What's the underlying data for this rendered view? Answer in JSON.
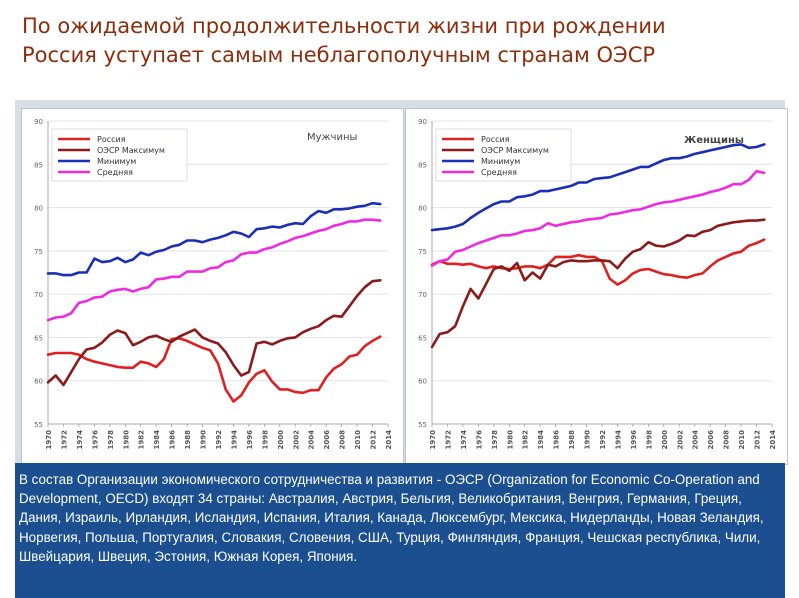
{
  "slide": {
    "title_line1": "По ожидаемой продолжительности жизни при рождении",
    "title_line2": "Россия уступает самым  неблагополучным странам ОЭСР",
    "note": "В состав Организации экономического сотрудничества и развития - ОЭСР (Organization for Economic Co-Operation and Development, OECD) входят 34 страны: Австралия, Австрия, Бельгия, Великобритания, Венгрия, Германия, Греция, Дания, Израиль, Ирландия, Исландия, Испания, Италия, Канада, Люксембург, Мексика, Нидерланды, Новая Зеландия, Норвегия, Польша, Португалия, Словакия, Словения, США, Турция, Финляндия, Франция, Чешская республика, Чили, Швейцария, Швеция, Эстония, Южная Корея, Япония."
  },
  "chart_data": [
    {
      "type": "line",
      "title": "Мужчины",
      "xlabel": "",
      "ylabel": "",
      "ylim": [
        55,
        90
      ],
      "yticks": [
        55,
        60,
        65,
        70,
        75,
        80,
        85,
        90
      ],
      "xlim": [
        1970,
        2014
      ],
      "xticks": [
        "1970",
        "1972",
        "1974",
        "1976",
        "1978",
        "1980",
        "1982",
        "1984",
        "1986",
        "1988",
        "1990",
        "1992",
        "1994",
        "1996",
        "1998",
        "2000",
        "2002",
        "2004",
        "2006",
        "2008",
        "2010",
        "2012",
        "2014"
      ],
      "grid": true,
      "legend_position": "top-left",
      "series": [
        {
          "name": "Россия",
          "color": "#e02020",
          "x": [
            1970,
            1971,
            1972,
            1973,
            1974,
            1975,
            1976,
            1977,
            1978,
            1979,
            1980,
            1981,
            1982,
            1983,
            1984,
            1985,
            1986,
            1987,
            1988,
            1989,
            1990,
            1991,
            1992,
            1993,
            1994,
            1995,
            1996,
            1997,
            1998,
            1999,
            2000,
            2001,
            2002,
            2003,
            2004,
            2005,
            2006,
            2007,
            2008,
            2009,
            2010,
            2011,
            2012,
            2013
          ],
          "y": [
            63.0,
            63.2,
            63.2,
            63.2,
            63.0,
            62.5,
            62.2,
            62.0,
            61.8,
            61.6,
            61.5,
            61.5,
            62.2,
            62.0,
            61.6,
            62.5,
            64.8,
            64.9,
            64.6,
            64.2,
            63.8,
            63.5,
            62.0,
            59.0,
            57.6,
            58.3,
            59.8,
            60.8,
            61.2,
            59.9,
            59.0,
            59.0,
            58.7,
            58.6,
            58.9,
            58.9,
            60.4,
            61.4,
            61.9,
            62.8,
            63.0,
            64.0,
            64.6,
            65.1
          ]
        },
        {
          "name": "ОЭСР Максимум",
          "color": "#8b1a1a",
          "x": [
            1970,
            1971,
            1972,
            1973,
            1974,
            1975,
            1976,
            1977,
            1978,
            1979,
            1980,
            1981,
            1982,
            1983,
            1984,
            1985,
            1986,
            1987,
            1988,
            1989,
            1990,
            1991,
            1992,
            1993,
            1994,
            1995,
            1996,
            1997,
            1998,
            1999,
            2000,
            2001,
            2002,
            2003,
            2004,
            2005,
            2006,
            2007,
            2008,
            2009,
            2010,
            2011,
            2012,
            2013
          ],
          "y": [
            59.8,
            60.6,
            59.5,
            61.0,
            62.5,
            63.6,
            63.8,
            64.4,
            65.3,
            65.8,
            65.5,
            64.1,
            64.5,
            65.0,
            65.2,
            64.8,
            64.5,
            65.1,
            65.5,
            65.9,
            65.0,
            64.6,
            64.3,
            63.3,
            61.8,
            60.6,
            61.0,
            64.3,
            64.5,
            64.2,
            64.6,
            64.9,
            65.0,
            65.6,
            66.0,
            66.3,
            67.0,
            67.5,
            67.4,
            68.6,
            69.8,
            70.8,
            71.5,
            71.6
          ]
        },
        {
          "name": "Минимум",
          "color": "#1a2fb5",
          "x": [
            1970,
            1971,
            1972,
            1973,
            1974,
            1975,
            1976,
            1977,
            1978,
            1979,
            1980,
            1981,
            1982,
            1983,
            1984,
            1985,
            1986,
            1987,
            1988,
            1989,
            1990,
            1991,
            1992,
            1993,
            1994,
            1995,
            1996,
            1997,
            1998,
            1999,
            2000,
            2001,
            2002,
            2003,
            2004,
            2005,
            2006,
            2007,
            2008,
            2009,
            2010,
            2011,
            2012,
            2013
          ],
          "y": [
            72.4,
            72.4,
            72.2,
            72.2,
            72.5,
            72.5,
            74.1,
            73.7,
            73.8,
            74.2,
            73.7,
            74.0,
            74.8,
            74.5,
            74.9,
            75.1,
            75.5,
            75.7,
            76.2,
            76.2,
            76.0,
            76.3,
            76.5,
            76.8,
            77.2,
            77.0,
            76.6,
            77.5,
            77.6,
            77.8,
            77.7,
            78.0,
            78.2,
            78.1,
            79.0,
            79.6,
            79.4,
            79.8,
            79.8,
            79.9,
            80.1,
            80.2,
            80.5,
            80.4
          ]
        },
        {
          "name": "Средняя",
          "color": "#ee2be0",
          "x": [
            1970,
            1971,
            1972,
            1973,
            1974,
            1975,
            1976,
            1977,
            1978,
            1979,
            1980,
            1981,
            1982,
            1983,
            1984,
            1985,
            1986,
            1987,
            1988,
            1989,
            1990,
            1991,
            1992,
            1993,
            1994,
            1995,
            1996,
            1997,
            1998,
            1999,
            2000,
            2001,
            2002,
            2003,
            2004,
            2005,
            2006,
            2007,
            2008,
            2009,
            2010,
            2011,
            2012,
            2013
          ],
          "y": [
            67.0,
            67.3,
            67.4,
            67.8,
            69.0,
            69.2,
            69.6,
            69.7,
            70.3,
            70.5,
            70.6,
            70.3,
            70.6,
            70.8,
            71.7,
            71.8,
            72.0,
            72.0,
            72.6,
            72.6,
            72.6,
            73.0,
            73.1,
            73.7,
            73.9,
            74.6,
            74.8,
            74.8,
            75.2,
            75.4,
            75.8,
            76.1,
            76.5,
            76.7,
            77.0,
            77.3,
            77.5,
            77.9,
            78.1,
            78.4,
            78.4,
            78.6,
            78.6,
            78.5
          ]
        }
      ]
    },
    {
      "type": "line",
      "title": "Женщины",
      "xlabel": "",
      "ylabel": "",
      "ylim": [
        55,
        90
      ],
      "yticks": [
        55,
        60,
        65,
        70,
        75,
        80,
        85,
        90
      ],
      "xlim": [
        1970,
        2014
      ],
      "xticks": [
        "1970",
        "1972",
        "1974",
        "1976",
        "1978",
        "1980",
        "1982",
        "1984",
        "1986",
        "1988",
        "1990",
        "1992",
        "1994",
        "1996",
        "1998",
        "2000",
        "2002",
        "2004",
        "2006",
        "2008",
        "2010",
        "2012",
        "2014"
      ],
      "grid": true,
      "legend_position": "top-left",
      "series": [
        {
          "name": "Россия",
          "color": "#e02020",
          "x": [
            1970,
            1971,
            1972,
            1973,
            1974,
            1975,
            1976,
            1977,
            1978,
            1979,
            1980,
            1981,
            1982,
            1983,
            1984,
            1985,
            1986,
            1987,
            1988,
            1989,
            1990,
            1991,
            1992,
            1993,
            1994,
            1995,
            1996,
            1997,
            1998,
            1999,
            2000,
            2001,
            2002,
            2003,
            2004,
            2005,
            2006,
            2007,
            2008,
            2009,
            2010,
            2011,
            2012,
            2013
          ],
          "y": [
            73.4,
            73.8,
            73.5,
            73.5,
            73.4,
            73.5,
            73.2,
            73.0,
            73.2,
            73.0,
            72.9,
            73.0,
            73.2,
            73.2,
            73.0,
            73.4,
            74.3,
            74.3,
            74.3,
            74.5,
            74.3,
            74.3,
            73.8,
            71.8,
            71.1,
            71.6,
            72.4,
            72.8,
            72.9,
            72.6,
            72.3,
            72.2,
            72.0,
            71.9,
            72.2,
            72.4,
            73.2,
            73.9,
            74.3,
            74.7,
            74.9,
            75.6,
            75.9,
            76.3
          ]
        },
        {
          "name": "ОЭСР Максимум",
          "color": "#8b1a1a",
          "x": [
            1970,
            1971,
            1972,
            1973,
            1974,
            1975,
            1976,
            1977,
            1978,
            1979,
            1980,
            1981,
            1982,
            1983,
            1984,
            1985,
            1986,
            1987,
            1988,
            1989,
            1990,
            1991,
            1992,
            1993,
            1994,
            1995,
            1996,
            1997,
            1998,
            1999,
            2000,
            2001,
            2002,
            2003,
            2004,
            2005,
            2006,
            2007,
            2008,
            2009,
            2010,
            2011,
            2012,
            2013
          ],
          "y": [
            63.9,
            65.4,
            65.6,
            66.3,
            68.6,
            70.6,
            69.5,
            71.2,
            72.9,
            73.2,
            72.7,
            73.6,
            71.6,
            72.5,
            71.8,
            73.4,
            73.2,
            73.7,
            73.9,
            73.8,
            73.8,
            73.9,
            73.9,
            73.8,
            73.0,
            74.1,
            74.9,
            75.2,
            76.0,
            75.6,
            75.5,
            75.8,
            76.2,
            76.8,
            76.7,
            77.2,
            77.4,
            77.9,
            78.1,
            78.3,
            78.4,
            78.5,
            78.5,
            78.6
          ]
        },
        {
          "name": "Минимум",
          "color": "#1a2fb5",
          "x": [
            1970,
            1971,
            1972,
            1973,
            1974,
            1975,
            1976,
            1977,
            1978,
            1979,
            1980,
            1981,
            1982,
            1983,
            1984,
            1985,
            1986,
            1987,
            1988,
            1989,
            1990,
            1991,
            1992,
            1993,
            1994,
            1995,
            1996,
            1997,
            1998,
            1999,
            2000,
            2001,
            2002,
            2003,
            2004,
            2005,
            2006,
            2007,
            2008,
            2009,
            2010,
            2011,
            2012,
            2013
          ],
          "y": [
            77.4,
            77.5,
            77.6,
            77.8,
            78.1,
            78.8,
            79.4,
            79.9,
            80.4,
            80.7,
            80.7,
            81.2,
            81.3,
            81.5,
            81.9,
            81.9,
            82.1,
            82.3,
            82.5,
            82.9,
            82.9,
            83.3,
            83.4,
            83.5,
            83.8,
            84.1,
            84.4,
            84.7,
            84.7,
            85.1,
            85.5,
            85.7,
            85.7,
            85.9,
            86.2,
            86.4,
            86.6,
            86.8,
            87.0,
            87.2,
            87.3,
            86.9,
            87.0,
            87.3
          ]
        },
        {
          "name": "Средняя",
          "color": "#ee2be0",
          "x": [
            1970,
            1971,
            1972,
            1973,
            1974,
            1975,
            1976,
            1977,
            1978,
            1979,
            1980,
            1981,
            1982,
            1983,
            1984,
            1985,
            1986,
            1987,
            1988,
            1989,
            1990,
            1991,
            1992,
            1993,
            1994,
            1995,
            1996,
            1997,
            1998,
            1999,
            2000,
            2001,
            2002,
            2003,
            2004,
            2005,
            2006,
            2007,
            2008,
            2009,
            2010,
            2011,
            2012,
            2013
          ],
          "y": [
            73.3,
            73.8,
            74.0,
            74.9,
            75.1,
            75.5,
            75.9,
            76.2,
            76.5,
            76.8,
            76.8,
            77.0,
            77.3,
            77.4,
            77.6,
            78.2,
            77.9,
            78.1,
            78.3,
            78.4,
            78.6,
            78.7,
            78.8,
            79.2,
            79.3,
            79.5,
            79.7,
            79.8,
            80.1,
            80.4,
            80.6,
            80.7,
            80.9,
            81.1,
            81.3,
            81.5,
            81.8,
            82.0,
            82.3,
            82.7,
            82.7,
            83.2,
            84.2,
            84.0
          ]
        }
      ]
    }
  ]
}
